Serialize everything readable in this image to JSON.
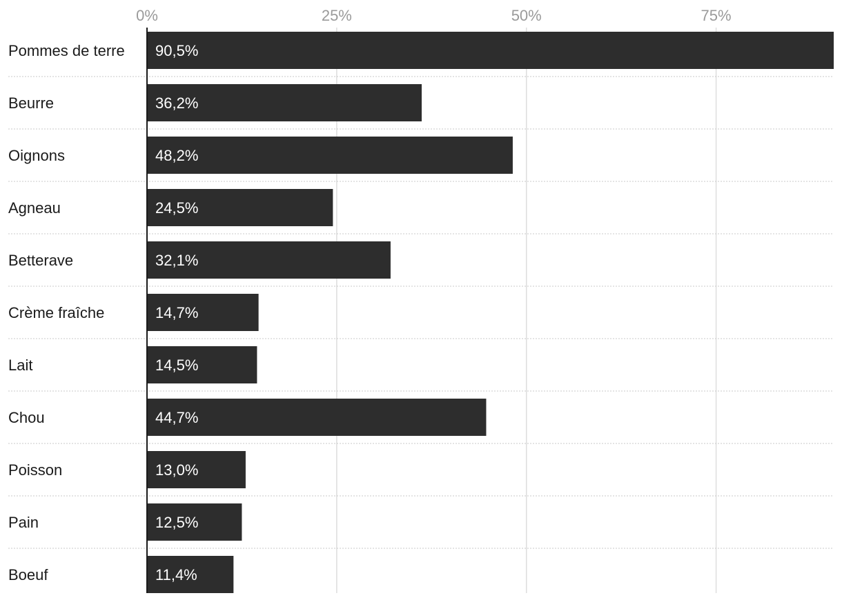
{
  "chart_data": {
    "type": "bar",
    "orientation": "horizontal",
    "categories": [
      "Pommes de terre",
      "Beurre",
      "Oignons",
      "Agneau",
      "Betterave",
      "Crème fraîche",
      "Lait",
      "Chou",
      "Poisson",
      "Pain",
      "Boeuf"
    ],
    "values": [
      90.5,
      36.2,
      48.2,
      24.5,
      32.1,
      14.7,
      14.5,
      44.7,
      13.0,
      12.5,
      11.4
    ],
    "value_labels": [
      "90,5%",
      "36,2%",
      "48,2%",
      "24,5%",
      "32,1%",
      "14,7%",
      "14,5%",
      "44,7%",
      "13,0%",
      "12,5%",
      "11,4%"
    ],
    "x_ticks": [
      0,
      25,
      50,
      75
    ],
    "x_tick_labels": [
      "0%",
      "25%",
      "50%",
      "75%"
    ],
    "xlim": [
      0,
      90.5
    ],
    "grid": true,
    "title": "",
    "xlabel": "",
    "ylabel": "",
    "colors": {
      "bar": "#2d2d2d",
      "grid": "#dddddd",
      "separator": "#c8c8c8",
      "axis": "#1a1a1a"
    }
  }
}
